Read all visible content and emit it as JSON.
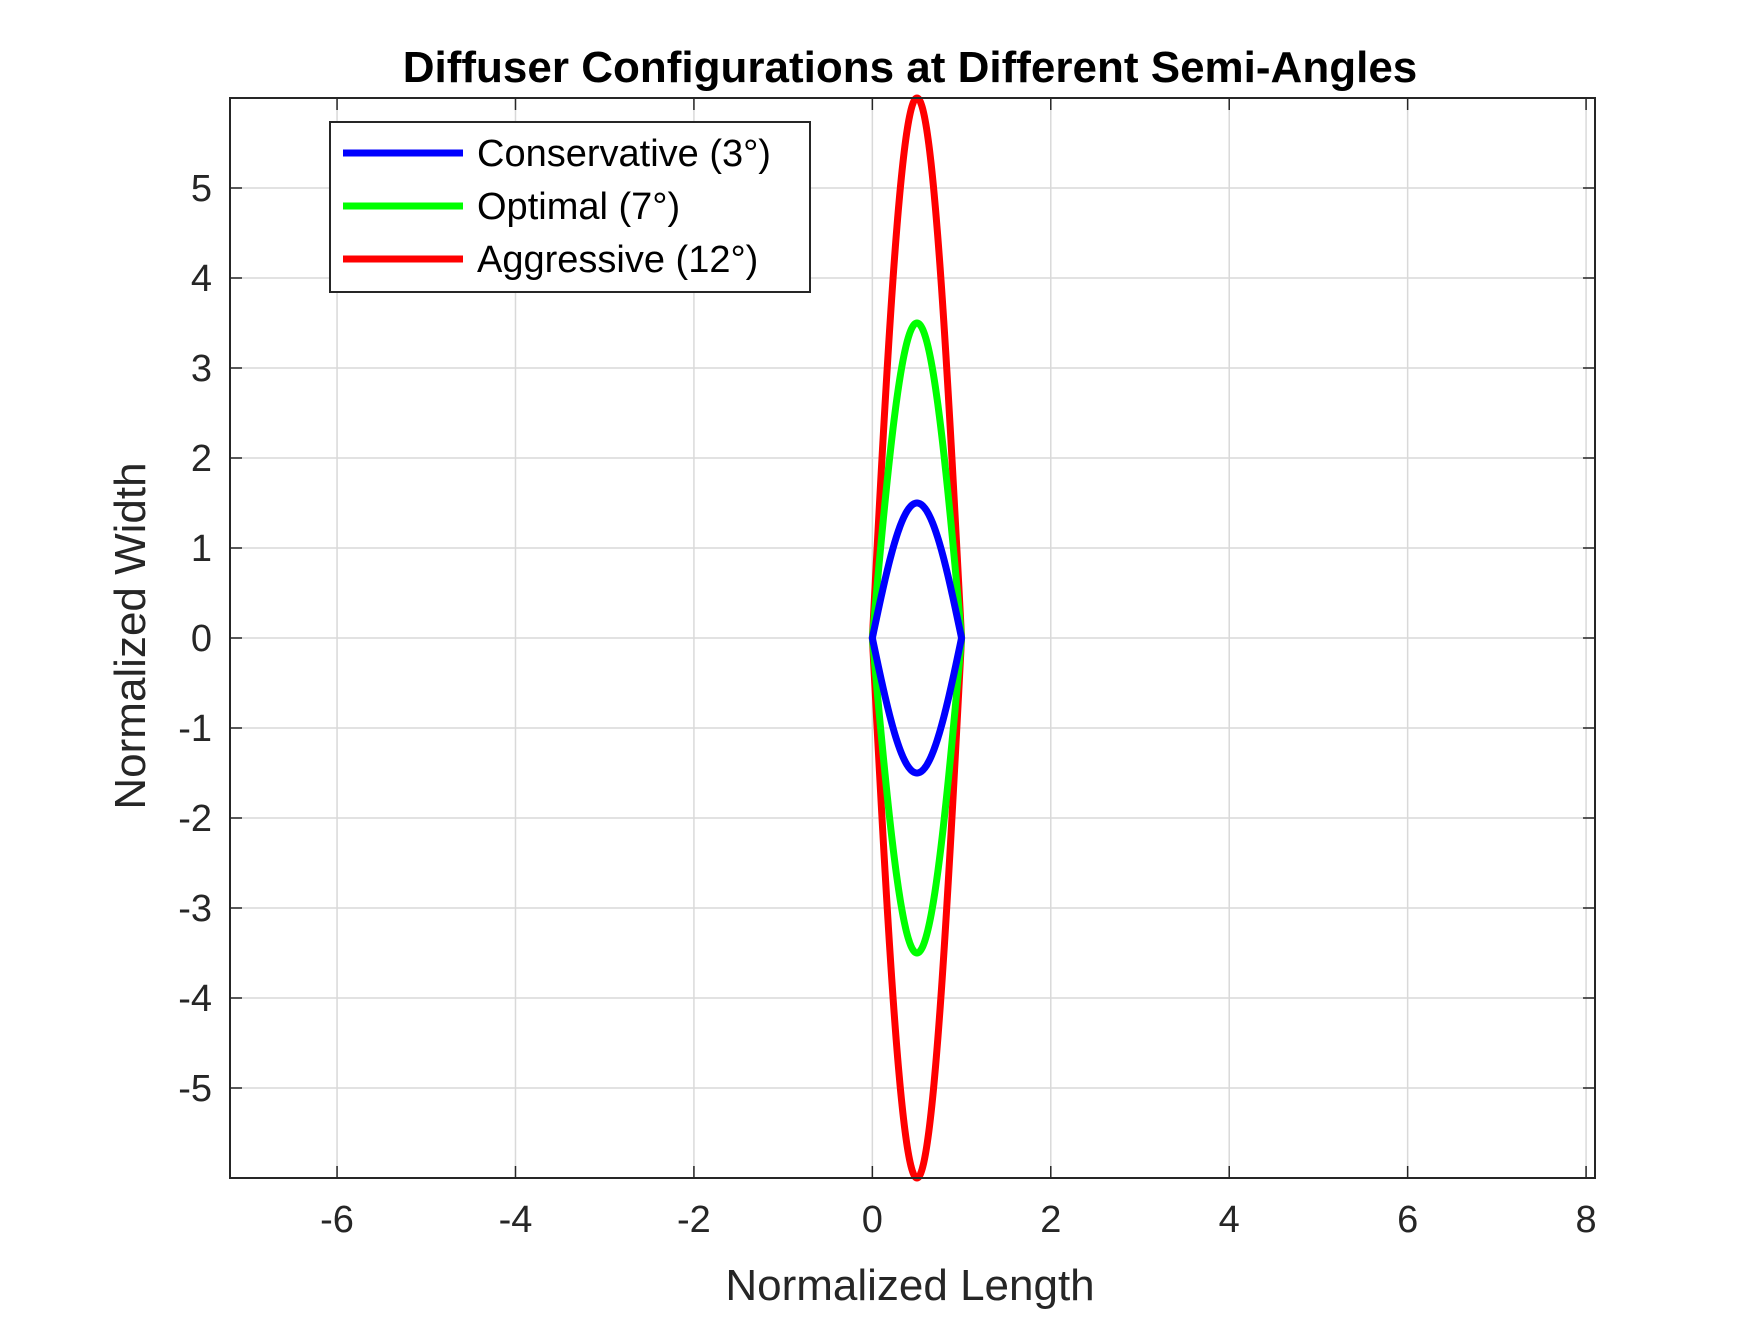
{
  "chart_data": {
    "type": "line",
    "title": "Diffuser Configurations at Different Semi-Angles",
    "xlabel": "Normalized Length",
    "ylabel": "Normalized Width",
    "xlim": [
      -7.2,
      8.1
    ],
    "ylim": [
      -6,
      6
    ],
    "xticks": [
      -6,
      -4,
      -2,
      0,
      2,
      4,
      6,
      8
    ],
    "yticks": [
      -5,
      -4,
      -3,
      -2,
      -1,
      0,
      1,
      2,
      3,
      4,
      5
    ],
    "grid": true,
    "legend_position": "top-left",
    "series": [
      {
        "name": "Conservative (3°)",
        "color": "#0000ff",
        "shape": "closed-lens",
        "x_start": 0,
        "x_end": 1,
        "half_width_max": 1.5
      },
      {
        "name": "Optimal (7°)",
        "color": "#00ff00",
        "shape": "closed-lens",
        "x_start": 0,
        "x_end": 1,
        "half_width_max": 3.5
      },
      {
        "name": "Aggressive (12°)",
        "color": "#ff0000",
        "shape": "closed-lens",
        "x_start": 0,
        "x_end": 1,
        "half_width_max": 6
      }
    ]
  }
}
